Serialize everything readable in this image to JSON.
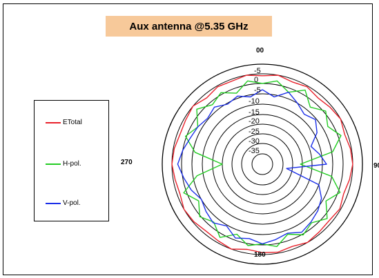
{
  "chart_data": {
    "type": "polar",
    "title": "Aux antenna @5.35 GHz",
    "angle_labels": [
      {
        "angle": 0,
        "text": "00"
      },
      {
        "angle": 90,
        "text": "90"
      },
      {
        "angle": 180,
        "text": "180"
      },
      {
        "angle": 270,
        "text": "270"
      }
    ],
    "radial_ticks": [
      -5,
      0,
      -5,
      -10,
      -15,
      -20,
      -25,
      -30,
      -35
    ],
    "radial_tick_labels": [
      "-5",
      "0",
      "-5",
      "-10",
      "-15",
      "-20",
      "-25",
      "-30",
      "-35"
    ],
    "legend_placement": "left",
    "series": [
      {
        "name": "ETotal",
        "color": "#e8202a",
        "angles": [
          0,
          10,
          20,
          30,
          40,
          50,
          60,
          70,
          80,
          90,
          100,
          110,
          120,
          130,
          140,
          150,
          160,
          170,
          180,
          190,
          200,
          210,
          220,
          230,
          240,
          250,
          260,
          270,
          280,
          290,
          300,
          310,
          320,
          330,
          340,
          350
        ],
        "ring_values": [
          1.2,
          1.0,
          1.3,
          1.1,
          1.4,
          1.2,
          1.0,
          1.3,
          1.1,
          1.0,
          1.2,
          1.4,
          1.1,
          1.3,
          1.2,
          1.0,
          1.3,
          1.1,
          1.2,
          1.4,
          1.0,
          1.2,
          1.3,
          1.1,
          1.0,
          1.3,
          1.2,
          1.0,
          1.1,
          1.3,
          1.2,
          1.0,
          1.4,
          1.1,
          1.2,
          1.0
        ]
      },
      {
        "name": "H-pol.",
        "color": "#22cc22",
        "angles": [
          0,
          10,
          20,
          30,
          40,
          50,
          60,
          70,
          80,
          90,
          100,
          110,
          120,
          130,
          140,
          150,
          160,
          170,
          180,
          190,
          200,
          210,
          220,
          230,
          240,
          250,
          260,
          270,
          280,
          290,
          300,
          310,
          320,
          330,
          340,
          350
        ],
        "ring_values": [
          2.0,
          1.6,
          2.4,
          1.5,
          2.6,
          1.8,
          2.5,
          1.7,
          2.9,
          6.2,
          3.0,
          1.8,
          2.7,
          1.6,
          2.4,
          1.9,
          2.6,
          1.7,
          2.1,
          1.8,
          2.6,
          1.6,
          2.5,
          1.9,
          2.7,
          1.7,
          3.4,
          6.0,
          3.2,
          1.9,
          2.6,
          1.5,
          2.3,
          1.8,
          2.5,
          1.6
        ]
      },
      {
        "name": "V-pol.",
        "color": "#1a2ee8",
        "angles": [
          0,
          10,
          20,
          30,
          40,
          50,
          60,
          70,
          80,
          90,
          100,
          110,
          120,
          130,
          140,
          150,
          160,
          170,
          180,
          190,
          200,
          210,
          220,
          230,
          240,
          250,
          260,
          270,
          280,
          290,
          300,
          310,
          320,
          330,
          340,
          350
        ],
        "ring_values": [
          2.6,
          3.2,
          2.4,
          3.0,
          3.5,
          3.1,
          3.7,
          4.8,
          4.2,
          3.6,
          7.6,
          4.0,
          3.2,
          2.8,
          2.5,
          2.2,
          2.7,
          2.4,
          2.1,
          2.5,
          2.2,
          2.9,
          2.4,
          2.7,
          3.0,
          2.5,
          2.1,
          1.6,
          2.0,
          2.4,
          2.6,
          2.9,
          2.6,
          3.1,
          2.8,
          3.2
        ]
      }
    ]
  }
}
